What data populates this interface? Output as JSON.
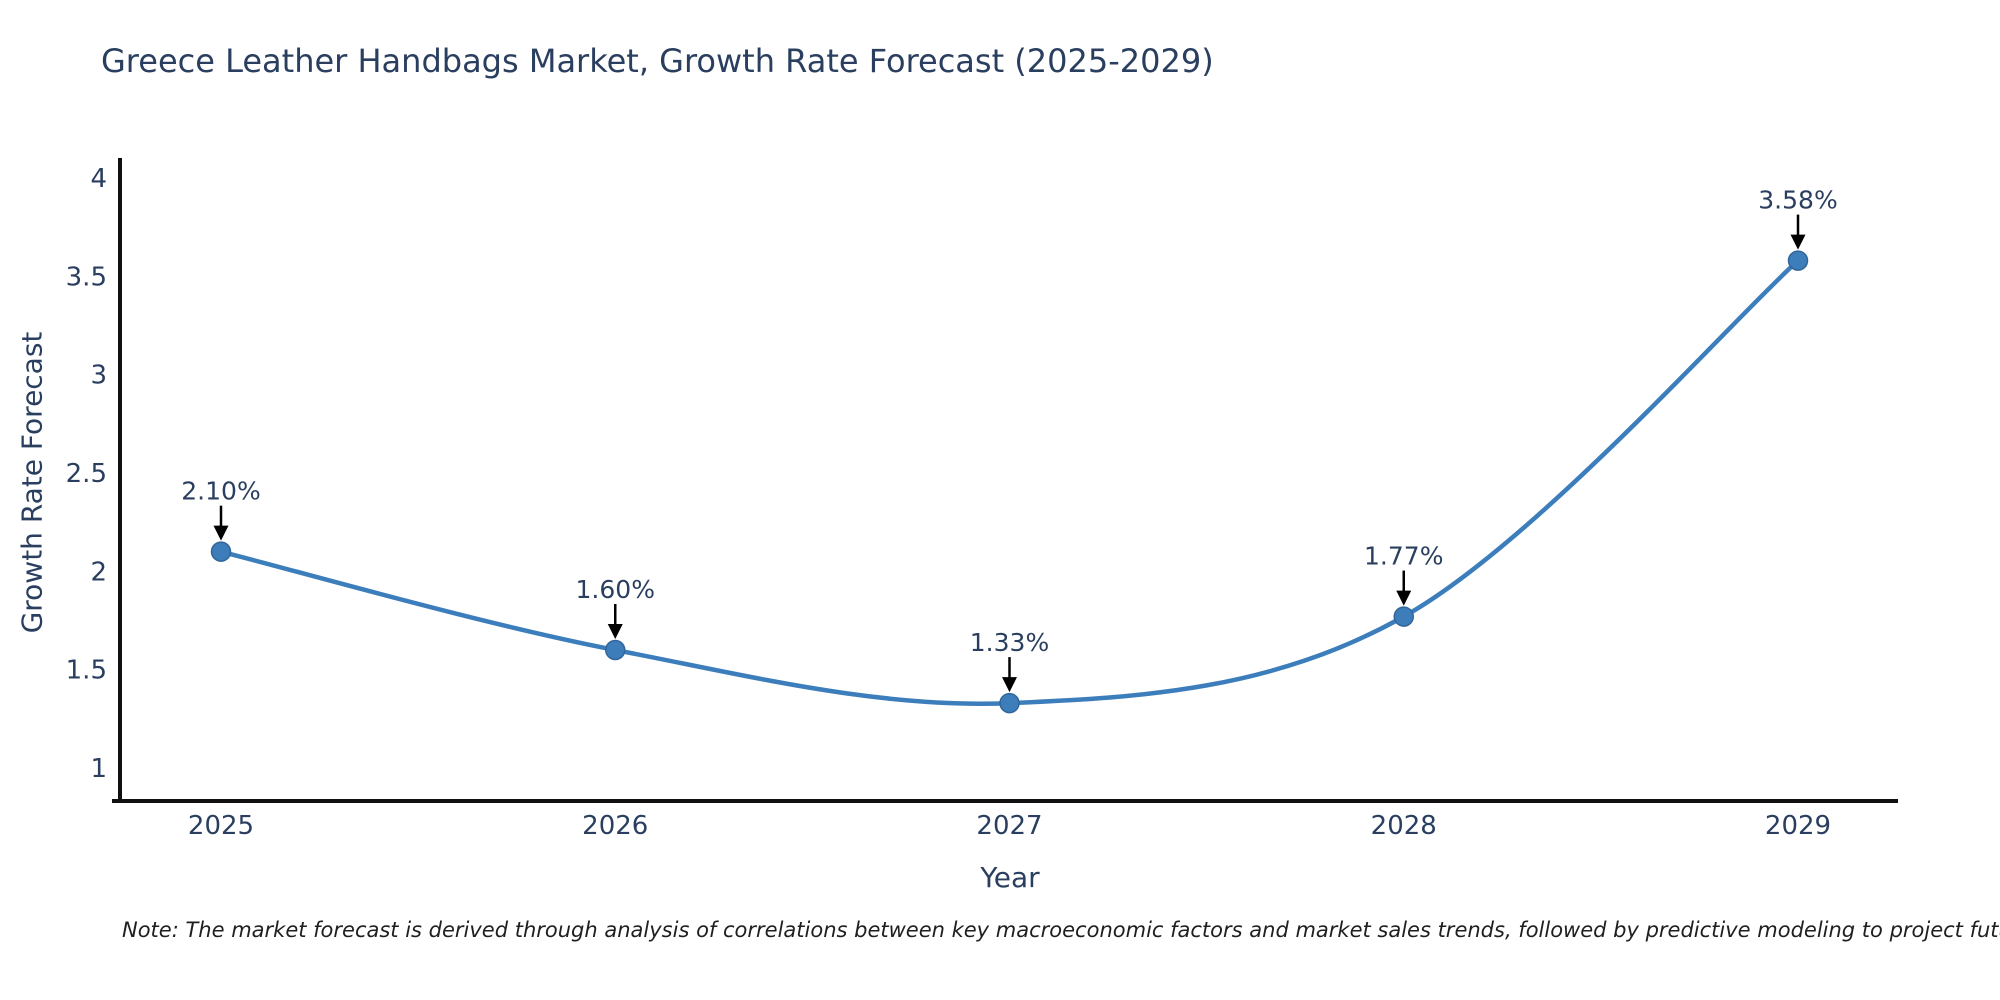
{
  "header": {
    "title": "Greece Leather Handbags Market, Growth Rate Forecast (2025-2029)"
  },
  "chart_data": {
    "type": "line",
    "title": "Greece Leather Handbags Market, Growth Rate Forecast (2025-2029)",
    "x": [
      2025,
      2026,
      2027,
      2028,
      2029
    ],
    "series": [
      {
        "name": "Growth Rate Forecast",
        "values": [
          2.1,
          1.6,
          1.33,
          1.77,
          3.58
        ]
      }
    ],
    "point_labels": [
      "2.10%",
      "1.60%",
      "1.33%",
      "1.77%",
      "3.58%"
    ],
    "xlabel": "Year",
    "ylabel": "Growth Rate Forecast",
    "x_tick_labels": [
      "2025",
      "2026",
      "2027",
      "2028",
      "2029"
    ],
    "y_ticks": [
      1,
      1.5,
      2,
      2.5,
      3,
      3.5,
      4
    ],
    "y_tick_labels": [
      "1",
      "1.5",
      "2",
      "2.5",
      "3",
      "3.5",
      "4"
    ],
    "ylim": [
      0.82,
      4.1
    ],
    "grid": false,
    "legend": "none",
    "line_shape": "spline",
    "colors": {
      "line": "#3c7ebb",
      "marker": "#3d7dba",
      "marker_edge": "#31669a",
      "axis": "#101010",
      "text": "#2a3f5f",
      "annotation_arrow": "#000000"
    }
  },
  "footer": {
    "note": "Note: The market forecast is derived through analysis of correlations between key macroeconomic factors and market sales trends, followed by predictive modeling to project future sales"
  }
}
